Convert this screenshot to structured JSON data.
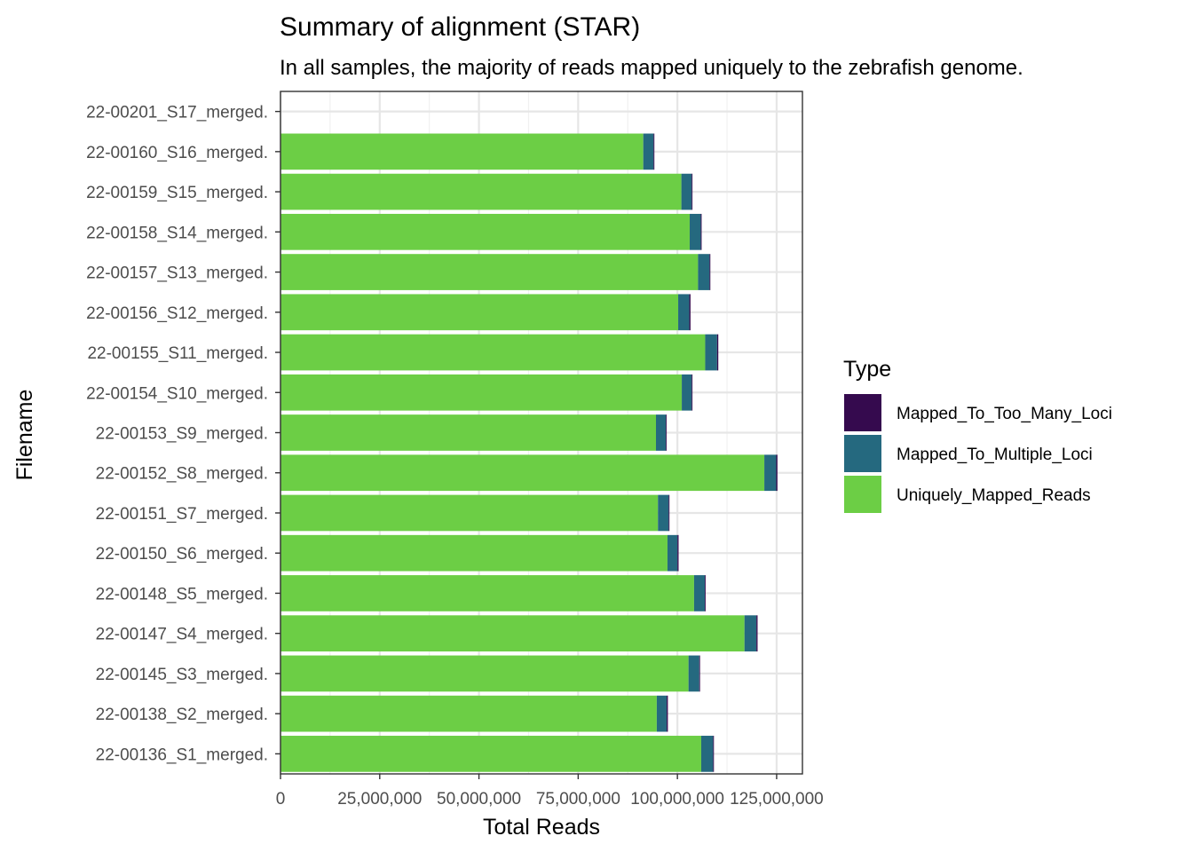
{
  "chart_data": {
    "type": "bar",
    "orientation": "horizontal",
    "stacked": true,
    "title": "Summary of alignment (STAR)",
    "subtitle": "In all samples, the majority of reads mapped uniquely to the zebrafish genome.",
    "xlabel": "Total Reads",
    "ylabel": "Filename",
    "xlim": [
      0,
      131500000
    ],
    "xticks": [
      0,
      25000000,
      50000000,
      75000000,
      100000000,
      125000000
    ],
    "xtick_labels": [
      "0",
      "25,000,000",
      "50,000,000",
      "75,000,000",
      "100,000,000",
      "125,000,000"
    ],
    "grid": true,
    "legend_position": "right",
    "categories": [
      "22-00201_S17_merged.",
      "22-00160_S16_merged.",
      "22-00159_S15_merged.",
      "22-00158_S14_merged.",
      "22-00157_S13_merged.",
      "22-00156_S12_merged.",
      "22-00155_S11_merged.",
      "22-00154_S10_merged.",
      "22-00153_S9_merged.",
      "22-00152_S8_merged.",
      "22-00151_S7_merged.",
      "22-00150_S6_merged.",
      "22-00148_S5_merged.",
      "22-00147_S4_merged.",
      "22-00145_S3_merged.",
      "22-00138_S2_merged.",
      "22-00136_S1_merged."
    ],
    "legend_title": "Type",
    "series": [
      {
        "name": "Uniquely_Mapped_Reads",
        "color": "#6CCE45",
        "values": [
          0,
          91400000,
          101000000,
          103100000,
          105200000,
          100200000,
          107000000,
          101100000,
          94600000,
          121900000,
          95100000,
          97500000,
          104200000,
          116900000,
          102800000,
          94800000,
          106000000
        ]
      },
      {
        "name": "Mapped_To_Multiple_Loci",
        "color": "#25697F",
        "values": [
          0,
          2600000,
          2600000,
          2800000,
          2900000,
          2800000,
          3000000,
          2500000,
          2500000,
          3000000,
          2700000,
          2500000,
          2700000,
          3000000,
          2700000,
          2500000,
          3000000
        ]
      },
      {
        "name": "Mapped_To_Too_Many_Loci",
        "color": "#350A4E",
        "values": [
          0,
          200000,
          200000,
          200000,
          200000,
          300000,
          300000,
          200000,
          200000,
          300000,
          200000,
          300000,
          200000,
          300000,
          200000,
          300000,
          200000
        ]
      }
    ],
    "legend_order": [
      "Mapped_To_Too_Many_Loci",
      "Mapped_To_Multiple_Loci",
      "Uniquely_Mapped_Reads"
    ]
  }
}
